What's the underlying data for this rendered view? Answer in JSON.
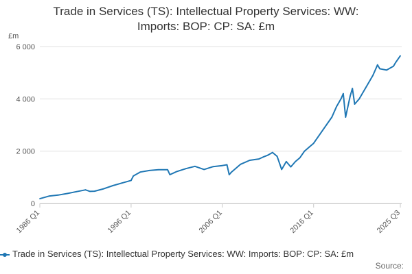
{
  "title_line1": "Trade in Services (TS): Intellectual Property Services: WW:",
  "title_line2": "Imports: BOP: CP: SA: £m",
  "source_label": "Source:",
  "chart_data": {
    "type": "line",
    "ylabel": "£m",
    "ylim": [
      0,
      6000
    ],
    "yticks": [
      0,
      2000,
      4000,
      6000
    ],
    "ytick_labels": [
      "0",
      "2 000",
      "4 000",
      "6 000"
    ],
    "xlim": [
      1986.0,
      2025.5
    ],
    "xticks": [
      1986.0,
      1996.0,
      2006.0,
      2016.0,
      2025.5
    ],
    "xtick_labels": [
      "1986 Q1",
      "1996 Q1",
      "2006 Q1",
      "2016 Q1",
      "2025 Q3"
    ],
    "grid": "horizontal",
    "legend": "bottom",
    "color": "#1f77b4",
    "series": [
      {
        "name": "Trade in Services (TS): Intellectual Property Services: WW: Imports: BOP: CP: SA: £m",
        "x": [
          1986.0,
          1987.0,
          1988.0,
          1989.0,
          1990.0,
          1991.0,
          1991.5,
          1992.0,
          1993.0,
          1994.0,
          1995.0,
          1996.0,
          1996.25,
          1997.0,
          1998.0,
          1999.0,
          2000.0,
          2000.25,
          2001.0,
          2002.0,
          2003.0,
          2004.0,
          2005.0,
          2006.0,
          2006.5,
          2006.75,
          2007.0,
          2008.0,
          2009.0,
          2010.0,
          2010.5,
          2011.0,
          2011.5,
          2012.0,
          2012.5,
          2013.0,
          2013.5,
          2014.0,
          2014.5,
          2015.0,
          2015.5,
          2016.0,
          2017.0,
          2018.0,
          2018.5,
          2019.0,
          2019.25,
          2019.5,
          2020.0,
          2020.25,
          2020.5,
          2021.0,
          2022.0,
          2022.5,
          2023.0,
          2023.25,
          2024.0,
          2024.75,
          2025.0,
          2025.5
        ],
        "values": [
          180,
          280,
          320,
          380,
          450,
          520,
          460,
          470,
          560,
          680,
          780,
          880,
          1050,
          1200,
          1260,
          1290,
          1290,
          1100,
          1220,
          1330,
          1420,
          1300,
          1410,
          1450,
          1480,
          1100,
          1200,
          1500,
          1650,
          1700,
          1780,
          1850,
          1950,
          1800,
          1300,
          1600,
          1400,
          1600,
          1750,
          2000,
          2150,
          2300,
          2800,
          3300,
          3700,
          4000,
          4200,
          3300,
          4100,
          4400,
          3800,
          4000,
          4600,
          4900,
          5300,
          5150,
          5100,
          5250,
          5400,
          5650
        ]
      }
    ]
  }
}
